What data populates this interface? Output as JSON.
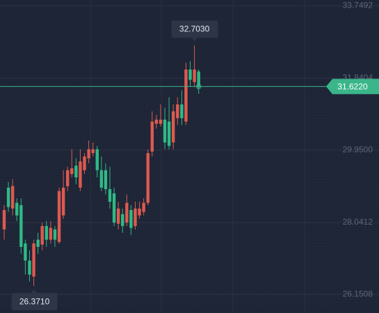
{
  "chart_data": {
    "type": "candlestick",
    "ylim": [
      25.66,
      33.9
    ],
    "yticks": [
      33.7492,
      31.8404,
      {
        "value": 29.95,
        "label": "29.9500"
      },
      28.0412,
      26.1508
    ],
    "grid": true,
    "up_color": "#dd5a4f",
    "down_color": "#2fb986",
    "open": [
      27.86,
      28.96,
      28.41,
      28.56,
      28.5,
      27.49,
      27.04,
      26.62,
      27.59,
      27.46,
      27.95,
      27.59,
      27.86,
      27.53,
      28.23,
      29.0,
      29.32,
      29.54,
      28.96,
      29.42,
      29.73,
      29.87,
      29.97,
      29.42,
      29.42,
      28.92,
      28.81,
      28.01,
      28.26,
      28.04,
      28.37,
      27.95,
      28.23,
      28.32,
      28.56,
      29.91,
      30.64,
      30.64,
      30.75,
      30.7,
      30.15,
      30.79,
      31.15,
      30.7,
      32.07,
      31.74,
      32.02
    ],
    "high": [
      28.5,
      29.11,
      29.18,
      28.68,
      28.68,
      27.59,
      27.31,
      27.59,
      27.77,
      28.04,
      28.08,
      28.08,
      27.95,
      28.96,
      29.42,
      29.51,
      29.97,
      29.73,
      29.97,
      29.87,
      30.2,
      30.15,
      30.06,
      29.78,
      29.6,
      29.51,
      28.96,
      28.59,
      28.41,
      28.78,
      28.5,
      28.59,
      28.59,
      28.68,
      29.97,
      30.97,
      30.88,
      31.15,
      31.06,
      31.34,
      31.15,
      31.34,
      31.52,
      32.25,
      32.29,
      32.703,
      32.07
    ],
    "low": [
      27.59,
      28.32,
      28.23,
      28.08,
      27.22,
      26.67,
      26.49,
      26.371,
      27.22,
      27.31,
      27.4,
      27.49,
      27.4,
      27.49,
      28.14,
      28.87,
      29.23,
      29.05,
      28.87,
      29.32,
      29.6,
      29.78,
      29.23,
      28.87,
      28.78,
      28.41,
      27.95,
      27.86,
      27.77,
      27.95,
      27.71,
      27.86,
      28.14,
      28.23,
      28.5,
      29.78,
      30.51,
      30.57,
      29.97,
      29.97,
      29.97,
      30.61,
      30.61,
      30.61,
      31.61,
      31.61,
      31.43
    ],
    "close": [
      28.37,
      28.45,
      29.0,
      28.23,
      27.4,
      27.04,
      26.67,
      27.49,
      27.4,
      27.95,
      27.59,
      27.9,
      27.59,
      28.87,
      28.96,
      29.42,
      29.47,
      29.23,
      29.65,
      29.78,
      29.97,
      29.97,
      29.42,
      28.96,
      28.92,
      28.59,
      28.04,
      28.41,
      27.95,
      28.56,
      27.9,
      28.41,
      28.41,
      28.56,
      29.87,
      30.7,
      30.75,
      30.75,
      30.15,
      30.06,
      30.97,
      31.15,
      30.79,
      32.07,
      31.8,
      32.07,
      31.622
    ],
    "current_price": {
      "value": 31.622,
      "label": "31.6220"
    },
    "current_color": "#3ab68a",
    "max_label": {
      "value": 32.703,
      "label": "32.7030"
    },
    "min_label": {
      "value": 26.371,
      "label": "26.3710"
    }
  }
}
